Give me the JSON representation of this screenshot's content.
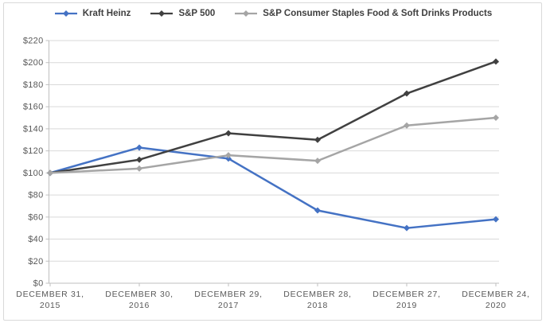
{
  "chart_data": {
    "type": "line",
    "title": "",
    "xlabel": "",
    "ylabel": "",
    "categories": [
      {
        "line1": "DECEMBER 31,",
        "line2": "2015"
      },
      {
        "line1": "DECEMBER 30,",
        "line2": "2016"
      },
      {
        "line1": "DECEMBER 29,",
        "line2": "2017"
      },
      {
        "line1": "DECEMBER 28,",
        "line2": "2018"
      },
      {
        "line1": "DECEMBER 27,",
        "line2": "2019"
      },
      {
        "line1": "DECEMBER 24,",
        "line2": "2020"
      }
    ],
    "series": [
      {
        "name": "Kraft Heinz",
        "color": "#4472C4",
        "values": [
          100,
          123,
          113,
          66,
          50,
          58
        ],
        "bold_legend": false
      },
      {
        "name": "S&P 500",
        "color": "#404040",
        "values": [
          100,
          112,
          136,
          130,
          172,
          201
        ],
        "bold_legend": false
      },
      {
        "name": "S&P Consumer Staples Food & Soft Drinks Products",
        "color": "#A5A5A5",
        "values": [
          100,
          104,
          116,
          111,
          143,
          150
        ],
        "bold_legend": true
      }
    ],
    "ylim": [
      0,
      220
    ],
    "ytick_step": 20,
    "ytick_prefix": "$",
    "grid": true,
    "marker": "diamond",
    "legend_position": "top"
  },
  "style": {
    "gridline_color": "#d9d9d9",
    "axis_line_color": "#bfbfbf",
    "tick_color": "#bfbfbf",
    "axis_label_color": "#595959",
    "legend_text_color": "#404040",
    "background_color": "#ffffff",
    "border_color": "#d9d9d9"
  }
}
